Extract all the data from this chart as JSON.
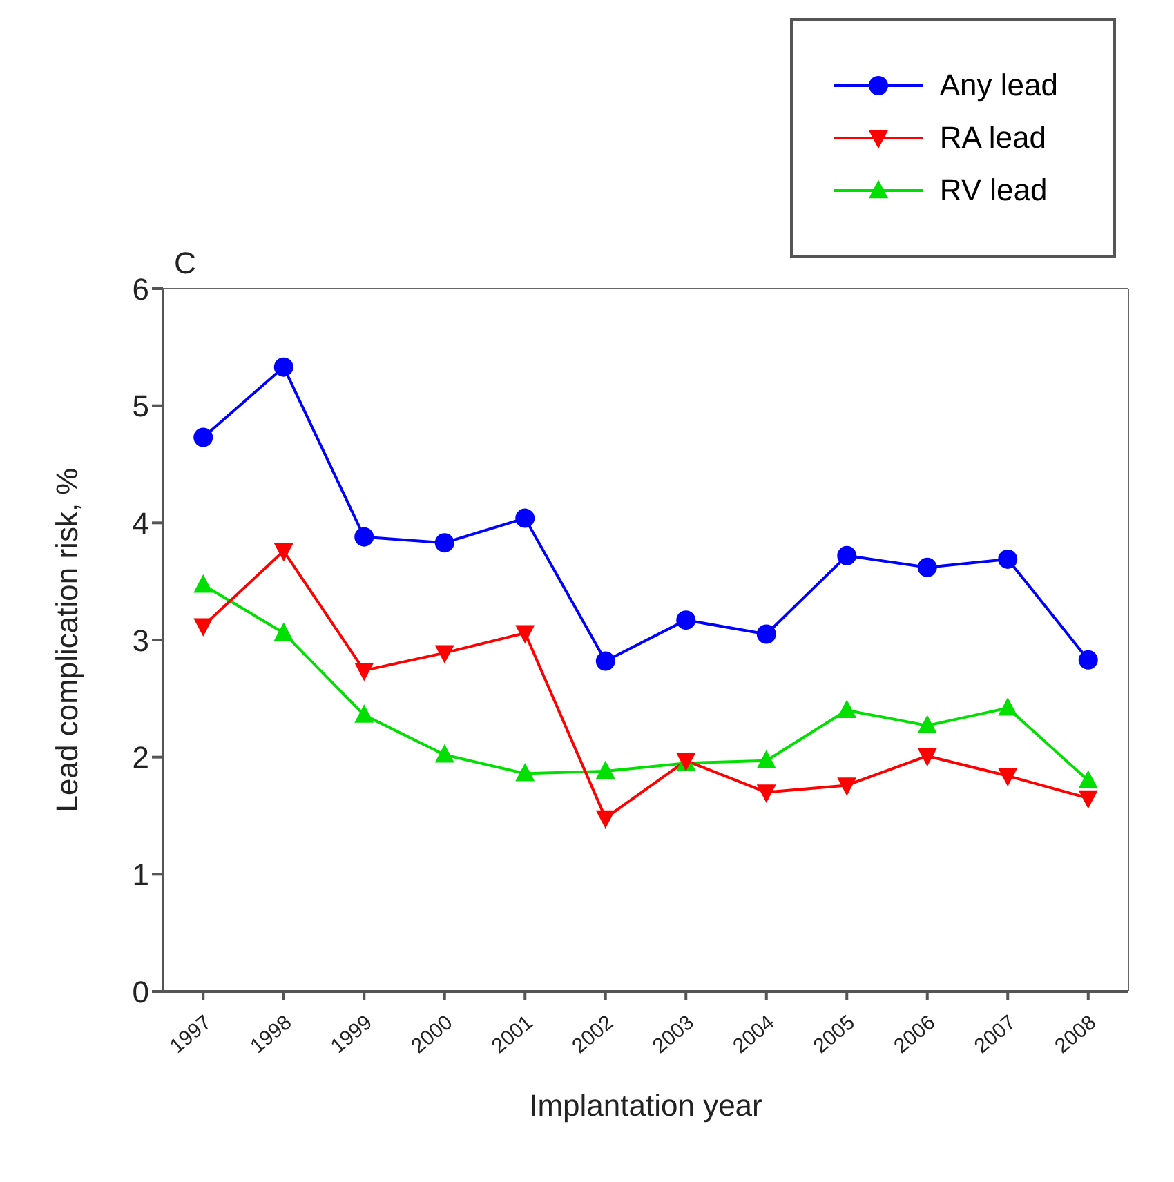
{
  "chart_data": {
    "type": "line",
    "xlabel": "Implantation year",
    "ylabel": "Lead complication risk, %",
    "annotations": [
      "C"
    ],
    "categories": [
      "1997",
      "1998",
      "1999",
      "2000",
      "2001",
      "2002",
      "2003",
      "2004",
      "2005",
      "2006",
      "2007",
      "2008"
    ],
    "series": [
      {
        "name": "Any lead",
        "color": "#0000ff",
        "marker": "circle",
        "values": [
          4.73,
          5.33,
          3.88,
          3.83,
          4.04,
          2.82,
          3.17,
          3.05,
          3.72,
          3.62,
          3.69,
          2.83
        ]
      },
      {
        "name": "RA lead",
        "color": "#ff0000",
        "marker": "triangle-down",
        "values": [
          3.12,
          3.76,
          2.74,
          2.89,
          3.06,
          1.48,
          1.97,
          1.7,
          1.76,
          2.01,
          1.84,
          1.65
        ]
      },
      {
        "name": "RV lead",
        "color": "#00e000",
        "marker": "triangle",
        "values": [
          3.47,
          3.06,
          2.36,
          2.02,
          1.86,
          1.88,
          1.95,
          1.97,
          2.4,
          2.27,
          2.42,
          1.8
        ]
      }
    ],
    "ylim": [
      0,
      6
    ],
    "yticks": [
      0,
      1,
      2,
      3,
      4,
      5,
      6
    ],
    "grid": false,
    "legend": "top right",
    "line_style": "solid"
  }
}
